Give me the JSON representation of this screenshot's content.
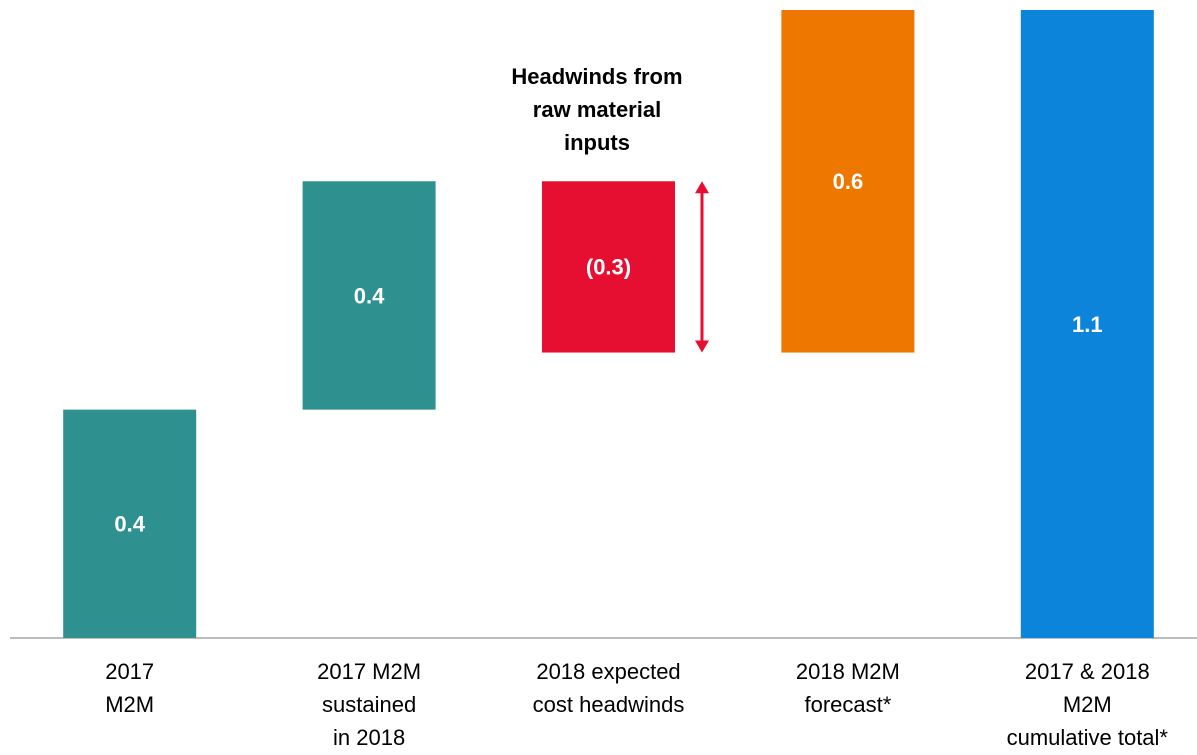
{
  "chart_data": {
    "type": "waterfall",
    "categories": [
      "2017\nM2M",
      "2017 M2M\nsustained\nin 2018",
      "2018 expected\ncost headwinds",
      "2018 M2M\nforecast*",
      "2017 & 2018\nM2M\ncumulative total*"
    ],
    "values": [
      0.4,
      0.4,
      -0.3,
      0.6,
      1.1
    ],
    "value_labels": [
      "0.4",
      "0.4",
      "(0.3)",
      "0.6",
      "1.1"
    ],
    "colors": [
      "#2e9190",
      "#2e9190",
      "#e70f31",
      "#ee7700",
      "#0b84d9"
    ],
    "ylim": [
      0,
      1.1
    ],
    "annotation": "Headwinds from\nraw material\ninputs"
  }
}
